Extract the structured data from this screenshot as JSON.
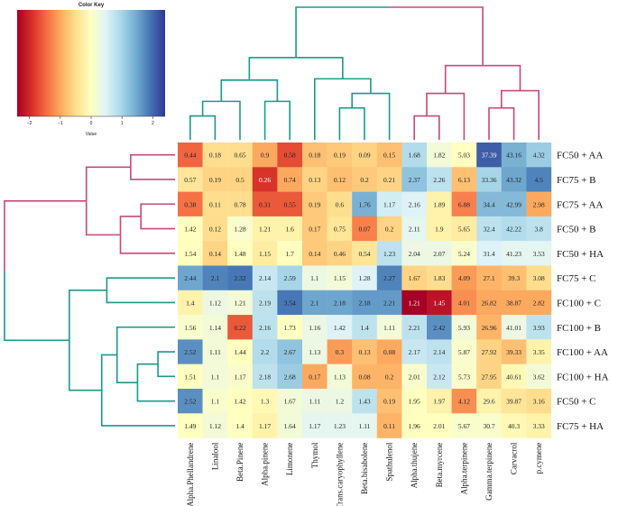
{
  "chart_data": {
    "type": "heatmap",
    "title": "",
    "color_key": {
      "title": "Color Key",
      "axis_label": "Value",
      "ticks": [
        -2,
        -1,
        0,
        1,
        2
      ],
      "tick_labels": [
        "−2",
        "−1",
        "0",
        "1",
        "2"
      ],
      "range": [
        -2.4,
        2.4
      ],
      "colors": [
        "#a50026",
        "#d73027",
        "#f46d43",
        "#fdae61",
        "#fee090",
        "#ffffbf",
        "#e0f3f8",
        "#abd9e9",
        "#74add1",
        "#4575b4",
        "#313695"
      ]
    },
    "columns": [
      "Alpha.Phellandrene",
      "Linalool",
      "Beta.Pinene",
      "Alpha.pinene",
      "Limonene",
      "Thymol",
      "Trans.caryophyllene",
      "Beta.bisabolene",
      "Spathulenol",
      "Alpha.thujene",
      "Beta.myrcene",
      "Alpha.terpinene",
      "Gamma.terpinene",
      "Carvacrol",
      "p.cymene"
    ],
    "rows": [
      "FC50 + AA",
      "FC75 + B",
      "FC75 + AA",
      "FC50 + B",
      "FC50 + HA",
      "FC75 + C",
      "FC100 + C",
      "FC100 + B",
      "FC100 + AA",
      "FC100 +  HA",
      "FC50 + C",
      "FC75 + HA"
    ],
    "labels": [
      [
        "0.44",
        "0.18",
        "0.65",
        "0.9",
        "0.58",
        "0.18",
        "0.19",
        "0.09",
        "0.15",
        "1.68",
        "1.82",
        "5.03",
        "37.39",
        "43.16",
        "4.32"
      ],
      [
        "0.57",
        "0.19",
        "0.5",
        "0.26",
        "0.74",
        "0.13",
        "0.12",
        "0.2",
        "0.21",
        "2.37",
        "2.26",
        "6.13",
        "33.36",
        "43.32",
        "4.5"
      ],
      [
        "0.38",
        "0.11",
        "0.78",
        "0.31",
        "0.55",
        "0.19",
        "0.6",
        "1.76",
        "1.17",
        "2.16",
        "1.89",
        "6.88",
        "34.4",
        "42.99",
        "2.98"
      ],
      [
        "1.42",
        "0.12",
        "1.28",
        "1.21",
        "1.6",
        "0.17",
        "0.75",
        "0.07",
        "0.2",
        "2.11",
        "1.9",
        "5.65",
        "32.4",
        "42.22",
        "3.8"
      ],
      [
        "1.54",
        "0.14",
        "1.48",
        "1.15",
        "1.7",
        "0.14",
        "0.46",
        "0.54",
        "1.23",
        "2.04",
        "2.07",
        "5.24",
        "31.4",
        "41.23",
        "3.53"
      ],
      [
        "2.44",
        "2.1",
        "2.32",
        "2.14",
        "2.59",
        "1.1",
        "1.15",
        "1.28",
        "2.27",
        "1.67",
        "1.83",
        "4.09",
        "27.1",
        "39.3",
        "3.08"
      ],
      [
        "1.4",
        "1.12",
        "1.21",
        "2.19",
        "3.54",
        "2.1",
        "2.18",
        "2.18",
        "2.21",
        "1.21",
        "1.45",
        "4.01",
        "26.82",
        "38.87",
        "2.82"
      ],
      [
        "1.56",
        "1.14",
        "0.22",
        "2.16",
        "1.73",
        "1.16",
        "1.42",
        "1.4",
        "1.11",
        "2.21",
        "2.42",
        "5.93",
        "26.96",
        "41.01",
        "3.93"
      ],
      [
        "2.52",
        "1.11",
        "1.44",
        "2.2",
        "2.67",
        "1.13",
        "0.3",
        "0.13",
        "0.08",
        "2.17",
        "2.14",
        "5.87",
        "27.92",
        "39.33",
        "3.35"
      ],
      [
        "1.51",
        "1.1",
        "1.17",
        "2.18",
        "2.68",
        "0.17",
        "1.13",
        "0.08",
        "0.2",
        "2.01",
        "2.12",
        "5.73",
        "27.95",
        "40.61",
        "3.62"
      ],
      [
        "2.52",
        "1.1",
        "1.42",
        "1.3",
        "1.67",
        "1.11",
        "1.2",
        "1.43",
        "0.19",
        "1.95",
        "1.97",
        "4.12",
        "29.6",
        "39.87",
        "3.16"
      ],
      [
        "1.49",
        "1.12",
        "1.4",
        "1.17",
        "1.64",
        "1.17",
        "1.23",
        "1.11",
        "0.11",
        "1.96",
        "2.01",
        "5.67",
        "30.7",
        "40.3",
        "3.33"
      ]
    ],
    "z_values": [
      [
        -1.5,
        -0.5,
        -0.5,
        -1.0,
        -1.7,
        -0.8,
        -0.7,
        -0.6,
        -0.8,
        0.9,
        0.2,
        0.0,
        2.1,
        1.4,
        1.1
      ],
      [
        -0.4,
        -0.6,
        -0.6,
        -1.9,
        -1.0,
        -0.6,
        -0.8,
        -0.7,
        -0.6,
        1.2,
        0.8,
        -0.8,
        1.0,
        1.5,
        1.8
      ],
      [
        -1.4,
        -0.5,
        -0.5,
        -1.6,
        -1.6,
        -0.7,
        -0.5,
        1.4,
        0.6,
        0.5,
        -0.2,
        -1.3,
        1.3,
        1.3,
        -1.0
      ],
      [
        0.0,
        -0.5,
        0.1,
        -0.2,
        -0.2,
        -0.7,
        -0.4,
        -1.3,
        -0.6,
        0.4,
        -0.2,
        -0.3,
        0.8,
        0.9,
        0.8
      ],
      [
        0.0,
        -0.6,
        0.0,
        -0.3,
        0.0,
        -0.7,
        -0.6,
        -0.4,
        0.8,
        0.3,
        0.3,
        0.1,
        0.5,
        0.4,
        0.4
      ],
      [
        1.5,
        1.8,
        1.9,
        0.7,
        1.0,
        0.3,
        0.2,
        0.5,
        1.8,
        -0.6,
        -0.5,
        -1.1,
        -0.9,
        -0.8,
        -0.5
      ],
      [
        -0.2,
        0.3,
        0.2,
        0.8,
        1.9,
        1.5,
        1.5,
        1.6,
        1.6,
        -2.4,
        -2.2,
        -1.2,
        -1.0,
        -1.0,
        -1.0
      ],
      [
        0.1,
        0.2,
        -1.6,
        0.8,
        0.0,
        0.3,
        0.5,
        0.8,
        0.2,
        0.8,
        1.7,
        0.2,
        -0.9,
        0.3,
        0.8
      ],
      [
        1.7,
        0.2,
        0.0,
        0.9,
        1.2,
        0.3,
        -1.1,
        -0.8,
        -1.0,
        0.7,
        0.8,
        0.1,
        -0.6,
        -0.8,
        -0.2
      ],
      [
        0.0,
        0.2,
        0.1,
        0.8,
        1.1,
        -1.0,
        0.2,
        -0.9,
        -0.9,
        0.1,
        0.7,
        0.1,
        -0.6,
        -0.1,
        0.2
      ],
      [
        1.7,
        0.1,
        0.0,
        -0.1,
        0.2,
        0.3,
        0.3,
        0.8,
        -0.8,
        0.0,
        -0.2,
        -1.2,
        -0.2,
        -0.4,
        -0.5
      ],
      [
        0.0,
        0.2,
        0.0,
        -0.2,
        0.2,
        0.4,
        0.4,
        0.4,
        -0.9,
        0.0,
        0.0,
        0.1,
        0.1,
        -0.1,
        -0.2
      ]
    ]
  }
}
